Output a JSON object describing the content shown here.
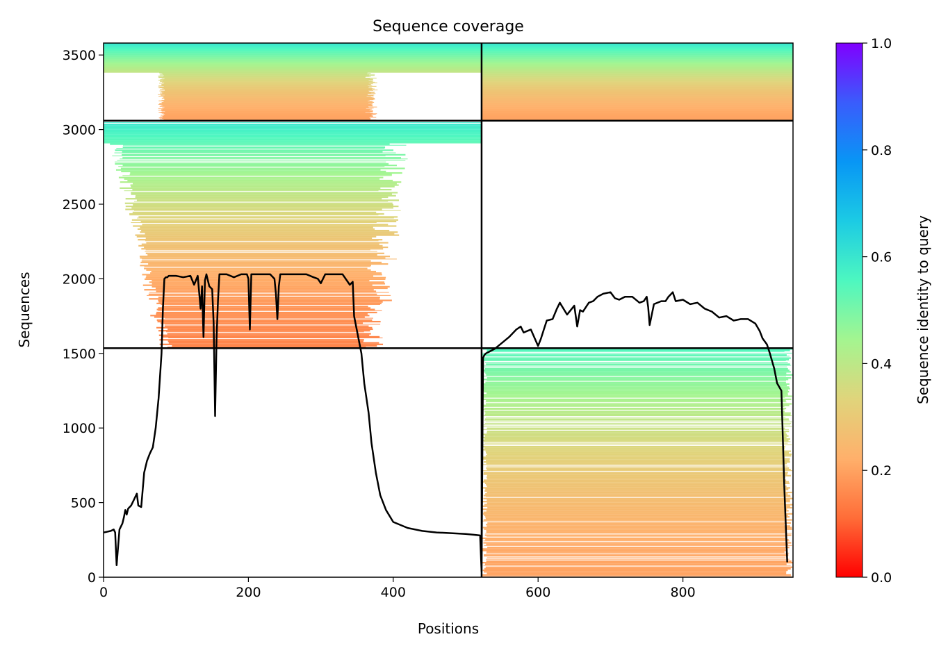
{
  "chart_data": {
    "type": "heatmap",
    "title": "Sequence coverage",
    "xlabel": "Positions",
    "ylabel": "Sequences",
    "xlim": [
      0,
      952
    ],
    "ylim": [
      0,
      3580
    ],
    "xticks": [
      0,
      200,
      400,
      600,
      800
    ],
    "yticks": [
      0,
      500,
      1000,
      1500,
      2000,
      2500,
      3000,
      3500
    ],
    "colorbar": {
      "label": "Sequence identity to query",
      "range": [
        0.0,
        1.0
      ],
      "ticks": [
        "0.0",
        "0.2",
        "0.4",
        "0.6",
        "0.8",
        "1.0"
      ],
      "colormap": "rainbow_r",
      "colors": [
        "#ff0000",
        "#ff6d38",
        "#ffb06b",
        "#e0d47b",
        "#a4f590",
        "#4df7c0",
        "#1ccbe4",
        "#0896f5",
        "#3a5cfc",
        "#8000ff"
      ]
    },
    "block_boundaries": {
      "x": [
        522
      ],
      "y": [
        1535,
        3060
      ]
    },
    "blocks": [
      {
        "name": "A",
        "x_range": [
          0,
          522
        ],
        "y_range": [
          1535,
          3060
        ],
        "identity_range": [
          0.15,
          0.6
        ]
      },
      {
        "name": "B",
        "x_range": [
          522,
          952
        ],
        "y_range": [
          0,
          1535
        ],
        "identity_range": [
          0.2,
          0.55
        ]
      },
      {
        "name": "AB",
        "x_range": [
          0,
          952
        ],
        "y_range": [
          3060,
          3580
        ],
        "identity_range": [
          0.2,
          0.6
        ]
      }
    ],
    "coverage": {
      "x": [
        0,
        10,
        14,
        16,
        18,
        22,
        26,
        28,
        30,
        32,
        34,
        38,
        42,
        44,
        46,
        48,
        52,
        56,
        60,
        64,
        68,
        72,
        76,
        80,
        82,
        84,
        86,
        88,
        90,
        100,
        110,
        120,
        125,
        130,
        134,
        136,
        138,
        140,
        142,
        146,
        150,
        152,
        154,
        156,
        158,
        160,
        170,
        180,
        190,
        198,
        200,
        202,
        204,
        210,
        220,
        230,
        236,
        238,
        240,
        242,
        244,
        246,
        250,
        260,
        270,
        280,
        290,
        296,
        300,
        306,
        312,
        320,
        330,
        340,
        344,
        346,
        350,
        356,
        360,
        366,
        370,
        376,
        382,
        390,
        400,
        420,
        440,
        460,
        480,
        500,
        510,
        520,
        522,
        524,
        526,
        528,
        532,
        540,
        550,
        560,
        570,
        576,
        580,
        590,
        600,
        604,
        608,
        612,
        620,
        626,
        630,
        640,
        650,
        654,
        658,
        662,
        666,
        670,
        676,
        682,
        690,
        700,
        706,
        712,
        720,
        730,
        740,
        746,
        750,
        752,
        754,
        760,
        770,
        776,
        780,
        786,
        790,
        800,
        810,
        820,
        830,
        840,
        850,
        860,
        870,
        880,
        890,
        900,
        906,
        910,
        916,
        920,
        926,
        930,
        936,
        940,
        944,
        946,
        948,
        950
      ],
      "y": [
        300,
        310,
        320,
        300,
        80,
        320,
        360,
        400,
        450,
        420,
        460,
        480,
        520,
        540,
        560,
        480,
        470,
        700,
        780,
        830,
        870,
        1000,
        1200,
        1500,
        1800,
        2000,
        2010,
        2010,
        2020,
        2020,
        2010,
        2020,
        1960,
        2020,
        1800,
        1950,
        1610,
        1990,
        2030,
        1950,
        1930,
        1700,
        1080,
        1600,
        1850,
        2030,
        2030,
        2010,
        2030,
        2030,
        2000,
        1660,
        2030,
        2030,
        2030,
        2030,
        2000,
        1900,
        1730,
        1950,
        2030,
        2030,
        2030,
        2030,
        2030,
        2030,
        2010,
        2000,
        1970,
        2030,
        2030,
        2030,
        2030,
        1960,
        1980,
        1750,
        1650,
        1500,
        1300,
        1100,
        900,
        700,
        550,
        450,
        370,
        330,
        310,
        300,
        295,
        290,
        285,
        280,
        40,
        1470,
        1490,
        1500,
        1510,
        1530,
        1570,
        1610,
        1660,
        1680,
        1640,
        1660,
        1550,
        1600,
        1660,
        1720,
        1730,
        1800,
        1840,
        1760,
        1820,
        1680,
        1790,
        1780,
        1810,
        1840,
        1850,
        1880,
        1900,
        1910,
        1870,
        1860,
        1880,
        1880,
        1840,
        1850,
        1880,
        1810,
        1690,
        1830,
        1850,
        1850,
        1880,
        1910,
        1850,
        1860,
        1830,
        1840,
        1800,
        1780,
        1740,
        1750,
        1720,
        1730,
        1730,
        1700,
        1650,
        1600,
        1560,
        1500,
        1400,
        1300,
        1250,
        600,
        100
      ]
    }
  }
}
